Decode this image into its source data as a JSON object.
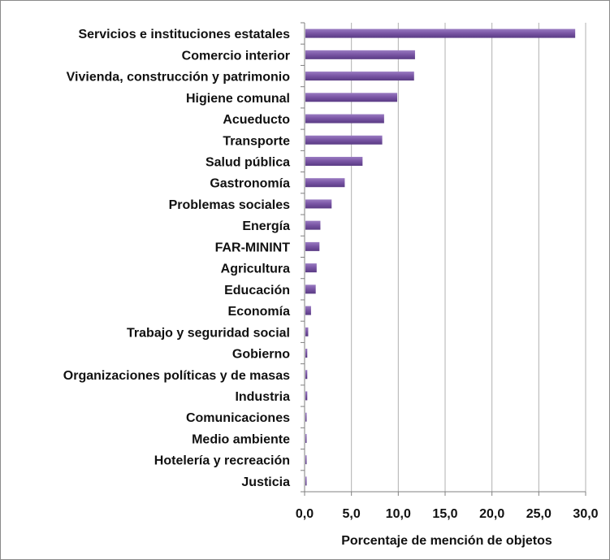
{
  "chart_data": {
    "type": "bar",
    "orientation": "horizontal",
    "categories": [
      "Servicios e instituciones estatales",
      "Comercio interior",
      "Vivienda, construcción y patrimonio",
      "Higiene comunal",
      "Acueducto",
      "Transporte",
      "Salud pública",
      "Gastronomía",
      "Problemas sociales",
      "Energía",
      "FAR-MININT",
      "Agricultura",
      "Educación",
      "Economía",
      "Trabajo y seguridad social",
      "Gobierno",
      "Organizaciones políticas y de masas",
      "Industria",
      "Comunicaciones",
      "Medio ambiente",
      "Hotelería y recreación",
      "Justicia"
    ],
    "values": [
      28.8,
      11.7,
      11.6,
      9.8,
      8.4,
      8.2,
      6.1,
      4.2,
      2.8,
      1.6,
      1.5,
      1.2,
      1.1,
      0.6,
      0.3,
      0.2,
      0.2,
      0.2,
      0.1,
      0.1,
      0.05,
      0.05
    ],
    "xlabel": "Porcentaje de mención de objetos",
    "xlim": [
      0,
      30
    ],
    "xticks": [
      "0,0",
      "5,0",
      "10,0",
      "15,0",
      "20,0",
      "25,0",
      "30,0"
    ],
    "grid": true,
    "bar_color": "#7B57A6"
  }
}
